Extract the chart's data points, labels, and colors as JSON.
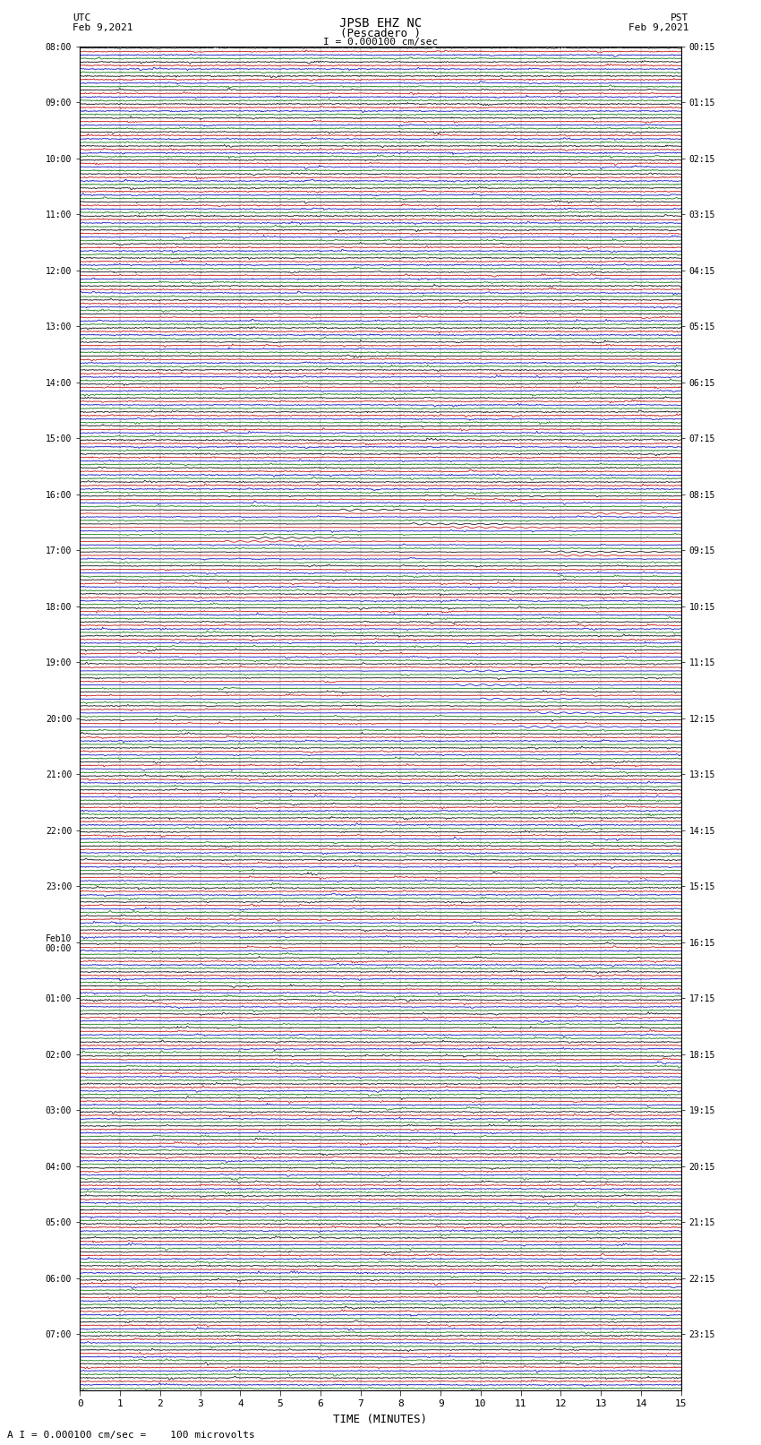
{
  "title_line1": "JPSB EHZ NC",
  "title_line2": "(Pescadero )",
  "title_scale": "I = 0.000100 cm/sec",
  "label_left_top": "UTC",
  "label_left_date": "Feb 9,2021",
  "label_right_top": "PST",
  "label_right_date": "Feb 9,2021",
  "xlabel": "TIME (MINUTES)",
  "footer": "A I = 0.000100 cm/sec =    100 microvolts",
  "bg_color": "#ffffff",
  "trace_colors": [
    "#000000",
    "#cc0000",
    "#0000cc",
    "#007700"
  ],
  "n_rows": 96,
  "n_traces_per_row": 4,
  "minutes": 15,
  "samples_per_minute": 60,
  "left_labels": [
    "08:00",
    "",
    "",
    "",
    "09:00",
    "",
    "",
    "",
    "10:00",
    "",
    "",
    "",
    "11:00",
    "",
    "",
    "",
    "12:00",
    "",
    "",
    "",
    "13:00",
    "",
    "",
    "",
    "14:00",
    "",
    "",
    "",
    "15:00",
    "",
    "",
    "",
    "16:00",
    "",
    "",
    "",
    "17:00",
    "",
    "",
    "",
    "18:00",
    "",
    "",
    "",
    "19:00",
    "",
    "",
    "",
    "20:00",
    "",
    "",
    "",
    "21:00",
    "",
    "",
    "",
    "22:00",
    "",
    "",
    "",
    "23:00",
    "",
    "",
    "",
    "Feb10\n00:00",
    "",
    "",
    "",
    "01:00",
    "",
    "",
    "",
    "02:00",
    "",
    "",
    "",
    "03:00",
    "",
    "",
    "",
    "04:00",
    "",
    "",
    "",
    "05:00",
    "",
    "",
    "",
    "06:00",
    "",
    "",
    "",
    "07:00",
    "",
    "",
    ""
  ],
  "right_labels": [
    "00:15",
    "",
    "",
    "",
    "01:15",
    "",
    "",
    "",
    "02:15",
    "",
    "",
    "",
    "03:15",
    "",
    "",
    "",
    "04:15",
    "",
    "",
    "",
    "05:15",
    "",
    "",
    "",
    "06:15",
    "",
    "",
    "",
    "07:15",
    "",
    "",
    "",
    "08:15",
    "",
    "",
    "",
    "09:15",
    "",
    "",
    "",
    "10:15",
    "",
    "",
    "",
    "11:15",
    "",
    "",
    "",
    "12:15",
    "",
    "",
    "",
    "13:15",
    "",
    "",
    "",
    "14:15",
    "",
    "",
    "",
    "15:15",
    "",
    "",
    "",
    "16:15",
    "",
    "",
    "",
    "17:15",
    "",
    "",
    "",
    "18:15",
    "",
    "",
    "",
    "19:15",
    "",
    "",
    "",
    "20:15",
    "",
    "",
    "",
    "21:15",
    "",
    "",
    "",
    "22:15",
    "",
    "",
    "",
    "23:15",
    "",
    "",
    ""
  ]
}
